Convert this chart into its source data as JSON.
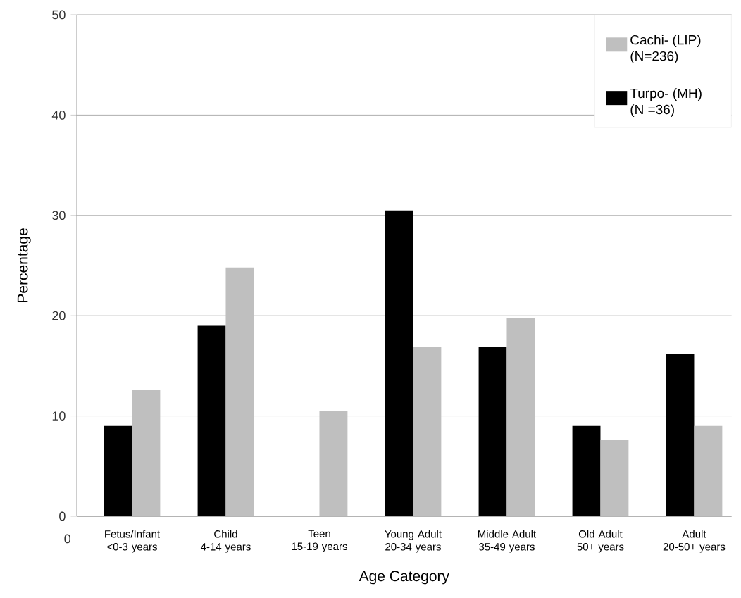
{
  "chart_data": {
    "type": "bar",
    "xlabel": "Age Category",
    "ylabel": "Percentage",
    "categories": [
      "Fetus/Infant\n<0-3 years",
      "Child\n4-14 years",
      "Teen\n15-19 years",
      "Young Adult\n20-34 years",
      "Middle Adult\n35-49 years",
      "Old Adult\n50+ years",
      "Adult\n20-50+ years"
    ],
    "series": [
      {
        "name": "Turpo- (MH) (N =36)",
        "color": "#000000",
        "values": [
          9.0,
          19.0,
          0,
          30.5,
          16.9,
          9.0,
          16.2
        ]
      },
      {
        "name": "Cachi- (LIP) (N=236)",
        "color": "#bfbfbf",
        "values": [
          12.6,
          24.8,
          10.5,
          16.9,
          19.8,
          7.6,
          9.0
        ]
      }
    ],
    "ylim": [
      0,
      50
    ],
    "yticks": [
      0,
      10,
      20,
      30,
      40,
      50
    ],
    "grid": "y",
    "legend": "top right",
    "annotations": [
      "0"
    ]
  }
}
